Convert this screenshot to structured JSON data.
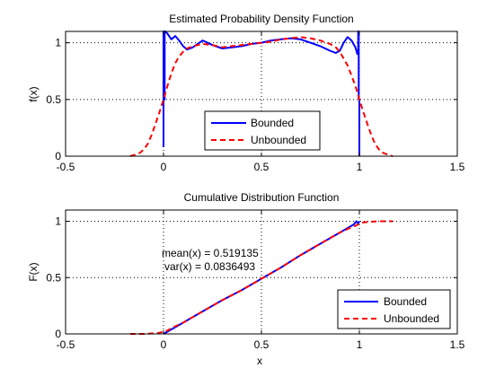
{
  "chart_data": [
    {
      "type": "line",
      "title": "Estimated Probability Density Function",
      "xlabel": "",
      "ylabel": "f(x)",
      "xlim": [
        -0.5,
        1.5
      ],
      "ylim": [
        0,
        1.1
      ],
      "xticks": [
        -0.5,
        0,
        0.5,
        1,
        1.5
      ],
      "xtick_labels": [
        "-0.5",
        "0",
        "0.5",
        "1",
        "1.5"
      ],
      "yticks": [
        0,
        0.5,
        1
      ],
      "ytick_labels": [
        "0",
        "0.5",
        "1"
      ],
      "grid": true,
      "legend_position": "bottom-center",
      "series": [
        {
          "name": "Bounded",
          "color": "#0000ff",
          "style": "solid",
          "x": [
            0,
            0,
            0.003,
            0.003,
            0.006,
            0.006,
            0.01,
            0.02,
            0.04,
            0.06,
            0.08,
            0.1,
            0.12,
            0.15,
            0.2,
            0.25,
            0.3,
            0.35,
            0.4,
            0.45,
            0.5,
            0.55,
            0.6,
            0.65,
            0.7,
            0.75,
            0.8,
            0.85,
            0.88,
            0.9,
            0.92,
            0.94,
            0.96,
            0.98,
            0.99,
            0.994,
            0.994,
            0.997,
            0.997,
            1.0,
            1.0
          ],
          "y": [
            0.08,
            1.1,
            1.1,
            0.5,
            0.5,
            1.1,
            1.1,
            1.08,
            1.03,
            1.06,
            1.02,
            0.97,
            0.94,
            0.96,
            1.02,
            0.98,
            0.95,
            0.96,
            0.97,
            0.99,
            1.0,
            1.02,
            1.03,
            1.04,
            1.03,
            1.0,
            0.97,
            0.93,
            0.91,
            0.93,
            1.0,
            1.05,
            1.02,
            0.96,
            0.9,
            0.9,
            1.1,
            1.1,
            0.5,
            0.5,
            0.0
          ]
        },
        {
          "name": "Unbounded",
          "color": "#ff0000",
          "style": "dashed",
          "x": [
            -0.17,
            -0.15,
            -0.12,
            -0.1,
            -0.08,
            -0.06,
            -0.04,
            -0.02,
            0,
            0.02,
            0.04,
            0.06,
            0.08,
            0.1,
            0.12,
            0.15,
            0.2,
            0.25,
            0.3,
            0.35,
            0.4,
            0.45,
            0.5,
            0.55,
            0.6,
            0.65,
            0.7,
            0.75,
            0.8,
            0.85,
            0.88,
            0.9,
            0.92,
            0.94,
            0.96,
            0.98,
            1.0,
            1.02,
            1.04,
            1.06,
            1.08,
            1.1,
            1.12,
            1.15,
            1.17
          ],
          "y": [
            0.0,
            0.01,
            0.03,
            0.06,
            0.11,
            0.19,
            0.29,
            0.39,
            0.5,
            0.62,
            0.73,
            0.82,
            0.88,
            0.92,
            0.95,
            0.97,
            0.99,
            0.98,
            0.96,
            0.97,
            0.98,
            0.99,
            1.0,
            1.01,
            1.03,
            1.04,
            1.05,
            1.04,
            1.02,
            0.99,
            0.96,
            0.92,
            0.86,
            0.8,
            0.71,
            0.62,
            0.5,
            0.39,
            0.29,
            0.19,
            0.11,
            0.06,
            0.03,
            0.01,
            0.0
          ]
        }
      ]
    },
    {
      "type": "line",
      "title": "Cumulative Distribution Function",
      "xlabel": "x",
      "ylabel": "F(x)",
      "xlim": [
        -0.5,
        1.5
      ],
      "ylim": [
        0,
        1.1
      ],
      "xticks": [
        -0.5,
        0,
        0.5,
        1,
        1.5
      ],
      "xtick_labels": [
        "-0.5",
        "0",
        "0.5",
        "1",
        "1.5"
      ],
      "yticks": [
        0,
        0.5,
        1
      ],
      "ytick_labels": [
        "0",
        "0.5",
        "1"
      ],
      "grid": true,
      "legend_position": "bottom-right",
      "annotations": [
        "mean(x) = 0.519135",
        "var(x) = 0.0836493"
      ],
      "series": [
        {
          "name": "Bounded",
          "color": "#0000ff",
          "style": "solid",
          "x": [
            0,
            0.1,
            0.2,
            0.3,
            0.4,
            0.5,
            0.6,
            0.7,
            0.8,
            0.9,
            0.97,
            0.985,
            0.995,
            1.0
          ],
          "y": [
            0,
            0.1,
            0.2,
            0.3,
            0.39,
            0.49,
            0.59,
            0.7,
            0.8,
            0.9,
            0.97,
            1.0,
            0.98,
            1.0
          ]
        },
        {
          "name": "Unbounded",
          "color": "#ff0000",
          "style": "dashed",
          "x": [
            -0.17,
            -0.1,
            -0.05,
            -0.02,
            0,
            0.02,
            0.05,
            0.1,
            0.2,
            0.3,
            0.4,
            0.5,
            0.6,
            0.7,
            0.8,
            0.9,
            0.95,
            0.98,
            1.0,
            1.02,
            1.05,
            1.1,
            1.17
          ],
          "y": [
            0,
            0.0,
            0.005,
            0.01,
            0.02,
            0.03,
            0.06,
            0.1,
            0.2,
            0.3,
            0.39,
            0.49,
            0.59,
            0.7,
            0.8,
            0.9,
            0.94,
            0.96,
            0.98,
            0.99,
            0.995,
            1.0,
            1.0
          ]
        }
      ]
    }
  ]
}
